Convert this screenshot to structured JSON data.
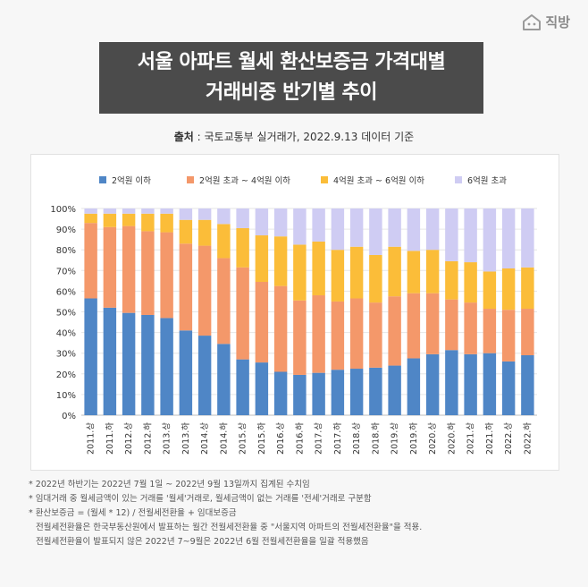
{
  "brand": {
    "name": "직방",
    "icon": "house-logo-icon"
  },
  "title": {
    "line1": "서울 아파트 월세 환산보증금 가격대별",
    "line2": "거래비중 반기별 추이"
  },
  "source": {
    "label": "출처",
    "text": " : 국토교통부 실거래가, 2022.9.13 데이터 기준"
  },
  "chart_data": {
    "type": "bar",
    "stacked": true,
    "categories": [
      "2011.상",
      "2011.하",
      "2012.상",
      "2012.하",
      "2013.상",
      "2013.하",
      "2014.상",
      "2014.하",
      "2015.상",
      "2015.하",
      "2016.상",
      "2016.하",
      "2017.상",
      "2017.하",
      "2018.상",
      "2018.하",
      "2019.상",
      "2019.하",
      "2020.상",
      "2020.하",
      "2021.상",
      "2021.하",
      "2022.상",
      "2022.하"
    ],
    "series": [
      {
        "name": "2억원 이하",
        "color": "#4f86c6",
        "values": [
          56.5,
          52,
          49.5,
          48.5,
          47,
          41,
          38.5,
          34.5,
          27,
          25.5,
          21,
          19.5,
          20.5,
          22,
          22.5,
          23,
          24,
          27.5,
          29.5,
          31.5,
          29.5,
          30,
          26,
          29
        ]
      },
      {
        "name": "2억원 초과 ~ 4억원 이하",
        "color": "#f4986a",
        "values": [
          36.5,
          39,
          42,
          40.5,
          41.5,
          42,
          43.5,
          41.5,
          44.5,
          39,
          41.5,
          36,
          37.5,
          33,
          34,
          31.5,
          33.5,
          31.5,
          29.5,
          24.5,
          25,
          21.5,
          25,
          22.5
        ]
      },
      {
        "name": "4억원 초과 ~ 6억원 이하",
        "color": "#fbbd39",
        "values": [
          4.5,
          6.5,
          6,
          8.5,
          9,
          11.5,
          12.5,
          16.5,
          19,
          22.5,
          24,
          27,
          26,
          25,
          25,
          23,
          24,
          20.5,
          21,
          18.5,
          19.5,
          18,
          20,
          20
        ]
      },
      {
        "name": "6억원 초과",
        "color": "#cfccf3",
        "values": [
          2.5,
          2.5,
          2.5,
          2.5,
          2.5,
          5.5,
          5.5,
          7.5,
          9.5,
          13,
          13.5,
          17.5,
          16,
          20,
          18.5,
          22.5,
          18.5,
          20.5,
          20,
          25.5,
          26,
          30.5,
          29,
          28.5
        ]
      }
    ],
    "y_ticks": [
      "0%",
      "10%",
      "20%",
      "30%",
      "40%",
      "50%",
      "60%",
      "70%",
      "80%",
      "90%",
      "100%"
    ],
    "ylim": [
      0,
      100
    ],
    "legend_position": "top"
  },
  "notes": [
    "* 2022년 하반기는 2022년 7월 1일 ~ 2022년 9월 13일까지 집계된 수치임",
    "* 임대거래 중 월세금액이 있는 거래를 '월세'거래로, 월세금액이 없는 거래를 '전세'거래로 구분함",
    "* 환산보증금 = (월세 * 12) / 전월세전환율 + 임대보증금",
    "전월세전환율은 한국부동산원에서 발표하는 월간 전월세전환율 중 \"서울지역 아파트의 전월세전환율\"을 적용.",
    "전월세전환율이 발표되지 않은 2022년 7~9월은 2022년 6월 전월세전환율을 일괄 적용했음"
  ]
}
